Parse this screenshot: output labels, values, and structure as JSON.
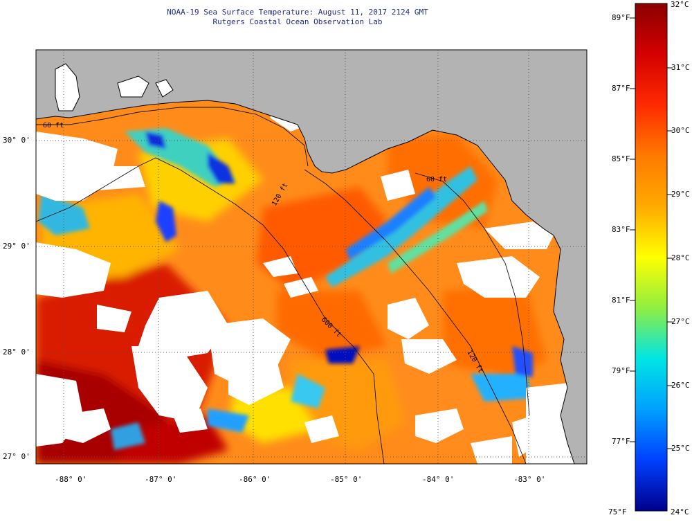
{
  "header": {
    "title": "NOAA-19 Sea Surface Temperature:  August 11, 2017 2124 GMT",
    "subtitle": "Rutgers Coastal Ocean Observation Lab"
  },
  "map": {
    "lon_labels": [
      "-88° 0'",
      "-87° 0'",
      "-86° 0'",
      "-85° 0'",
      "-84° 0'",
      "-83° 0'"
    ],
    "lat_labels": [
      "30° 0'",
      "29° 0'",
      "28° 0'",
      "27° 0'"
    ],
    "isobath_labels": [
      "60 ft",
      "120 ft",
      "600 ft",
      "120 ft",
      "60 ft"
    ],
    "colors": {
      "land": "#b3b3b3",
      "cloud": "#ffffff",
      "coast": "#000000"
    }
  },
  "colorbar": {
    "celsius_labels": [
      "32°C",
      "31°C",
      "30°C",
      "29°C",
      "28°C",
      "27°C",
      "26°C",
      "25°C",
      "24°C"
    ],
    "fahrenheit_labels": [
      "89°F",
      "87°F",
      "85°F",
      "83°F",
      "81°F",
      "79°F",
      "77°F",
      "75°F"
    ],
    "range_c": [
      24,
      32
    ],
    "stops": [
      "#8b0000",
      "#d40000",
      "#ff2a00",
      "#ff7a00",
      "#ffaa00",
      "#ffff00",
      "#90ee40",
      "#00e5e5",
      "#00a0ff",
      "#0040ff",
      "#00008b"
    ]
  }
}
